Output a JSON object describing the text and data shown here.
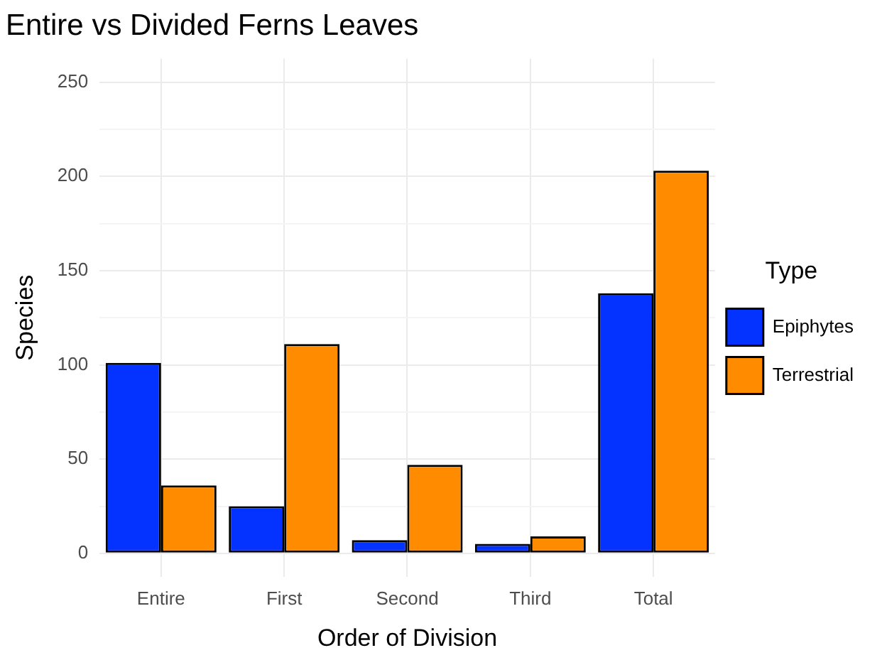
{
  "chart_data": {
    "type": "bar",
    "title": "Entire vs Divided Ferns Leaves",
    "xlabel": "Order of Division",
    "ylabel": "Species",
    "legend_title": "Type",
    "categories": [
      "Entire",
      "First",
      "Second",
      "Third",
      "Total"
    ],
    "series": [
      {
        "name": "Epiphytes",
        "color": "#0433ff",
        "values": [
          101,
          25,
          7,
          5,
          138
        ]
      },
      {
        "name": "Terrestrial",
        "color": "#ff8c00",
        "values": [
          36,
          111,
          47,
          9,
          203
        ]
      }
    ],
    "ylim": [
      -12.5,
      262.5
    ],
    "yticks": [
      0,
      {
        "value": 25,
        "label": null
      },
      50,
      {
        "value": 75,
        "label": null
      },
      100,
      {
        "value": 125,
        "label": null
      },
      150,
      {
        "value": 175,
        "label": null
      },
      200,
      {
        "value": 225,
        "label": null
      },
      250
    ],
    "grid": true,
    "legend": "right"
  }
}
